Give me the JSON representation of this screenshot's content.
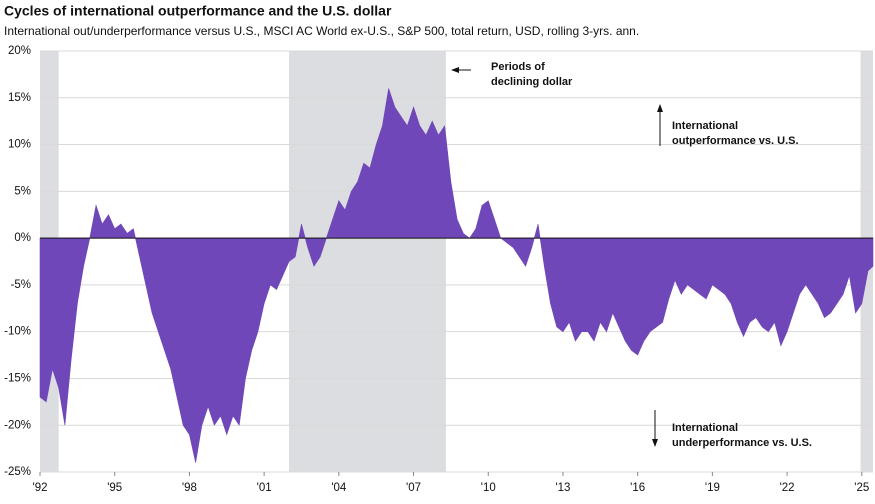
{
  "chart_data": {
    "type": "area",
    "title": "Cycles of international outperformance and the U.S. dollar",
    "subtitle": "International out/underperformance versus U.S., MSCI AC World ex-U.S., S&P 500, total return, USD, rolling 3-yrs. ann.",
    "x": [
      1992,
      1992.25,
      1992.5,
      1992.75,
      1993,
      1993.25,
      1993.5,
      1993.75,
      1994,
      1994.25,
      1994.5,
      1994.75,
      1995,
      1995.25,
      1995.5,
      1995.75,
      1996,
      1996.25,
      1996.5,
      1996.75,
      1997,
      1997.25,
      1997.5,
      1997.75,
      1998,
      1998.25,
      1998.5,
      1998.75,
      1999,
      1999.25,
      1999.5,
      1999.75,
      2000,
      2000.25,
      2000.5,
      2000.75,
      2001,
      2001.25,
      2001.5,
      2001.75,
      2002,
      2002.25,
      2002.5,
      2002.75,
      2003,
      2003.25,
      2003.5,
      2003.75,
      2004,
      2004.25,
      2004.5,
      2004.75,
      2005,
      2005.25,
      2005.5,
      2005.75,
      2006,
      2006.25,
      2006.5,
      2006.75,
      2007,
      2007.25,
      2007.5,
      2007.75,
      2008,
      2008.25,
      2008.5,
      2008.75,
      2009,
      2009.25,
      2009.5,
      2009.75,
      2010,
      2010.25,
      2010.5,
      2010.75,
      2011,
      2011.25,
      2011.5,
      2011.75,
      2012,
      2012.25,
      2012.5,
      2012.75,
      2013,
      2013.25,
      2013.5,
      2013.75,
      2014,
      2014.25,
      2014.5,
      2014.75,
      2015,
      2015.25,
      2015.5,
      2015.75,
      2016,
      2016.25,
      2016.5,
      2016.75,
      2017,
      2017.25,
      2017.5,
      2017.75,
      2018,
      2018.25,
      2018.5,
      2018.75,
      2019,
      2019.25,
      2019.5,
      2019.75,
      2020,
      2020.25,
      2020.5,
      2020.75,
      2021,
      2021.25,
      2021.5,
      2021.75,
      2022,
      2022.25,
      2022.5,
      2022.75,
      2023,
      2023.25,
      2023.5,
      2023.75,
      2024,
      2024.25,
      2024.5,
      2024.75,
      2025,
      2025.25,
      2025.45
    ],
    "series": [
      {
        "color": "#6f47b8",
        "values": [
          -17,
          -17.5,
          -14,
          -16,
          -20,
          -13,
          -7,
          -3,
          0,
          3.5,
          1.5,
          2.5,
          1,
          1.5,
          0.5,
          1,
          -2,
          -5,
          -8,
          -10,
          -12,
          -14,
          -17,
          -20,
          -21,
          -24,
          -20,
          -18,
          -20,
          -19,
          -21,
          -19,
          -20,
          -15,
          -12,
          -10,
          -7,
          -5,
          -5.5,
          -4,
          -2.5,
          -2,
          1.5,
          -1,
          -3,
          -2,
          0,
          2,
          4,
          3,
          5,
          6,
          8,
          7.5,
          10,
          12,
          16,
          14,
          13,
          12,
          14,
          12,
          11,
          12.5,
          11,
          12,
          6,
          2,
          0.5,
          0,
          1,
          3.5,
          4,
          2,
          0,
          -0.5,
          -1,
          -2,
          -3,
          -1,
          1.5,
          -3,
          -7,
          -9.5,
          -10,
          -9,
          -11,
          -10,
          -10,
          -11,
          -9,
          -10,
          -8,
          -9.5,
          -11,
          -12,
          -12.5,
          -11,
          -10,
          -9.5,
          -9,
          -6.5,
          -4.5,
          -6,
          -5,
          -5.5,
          -6,
          -6.5,
          -5,
          -5.5,
          -6,
          -7,
          -9,
          -10.5,
          -9,
          -8.5,
          -9.5,
          -10,
          -9,
          -11.5,
          -10,
          -8,
          -6,
          -5,
          -6,
          -7,
          -8.5,
          -8,
          -7,
          -6,
          -4,
          -8,
          -7,
          -3.5,
          -3
        ]
      }
    ],
    "shaded_periods": [
      [
        1992,
        1992.75
      ],
      [
        2002,
        2008.3
      ],
      [
        2024.95,
        2025.45
      ]
    ],
    "shade_color": "#dcdde0",
    "xlim": [
      1992,
      2025.45
    ],
    "xticks": [
      {
        "value": 1992,
        "label": "'92"
      },
      {
        "value": 1995,
        "label": "'95"
      },
      {
        "value": 1998,
        "label": "'98"
      },
      {
        "value": 2001,
        "label": "'01"
      },
      {
        "value": 2004,
        "label": "'04"
      },
      {
        "value": 2007,
        "label": "'07"
      },
      {
        "value": 2010,
        "label": "'10"
      },
      {
        "value": 2013,
        "label": "'13"
      },
      {
        "value": 2016,
        "label": "'16"
      },
      {
        "value": 2019,
        "label": "'19"
      },
      {
        "value": 2022,
        "label": "'22"
      },
      {
        "value": 2025,
        "label": "'25"
      }
    ],
    "ylim": [
      -25,
      20
    ],
    "yticks": [
      {
        "value": -25,
        "label": "-25%"
      },
      {
        "value": -20,
        "label": "-20%"
      },
      {
        "value": -15,
        "label": "-15%"
      },
      {
        "value": -10,
        "label": "-10%"
      },
      {
        "value": -5,
        "label": "-5%"
      },
      {
        "value": 0,
        "label": "0%"
      },
      {
        "value": 5,
        "label": "5%"
      },
      {
        "value": 10,
        "label": "10%"
      },
      {
        "value": 15,
        "label": "15%"
      },
      {
        "value": 20,
        "label": "20%"
      }
    ],
    "grid": true,
    "annotations": [
      {
        "lines": [
          "Periods of",
          "declining dollar"
        ]
      },
      {
        "lines": [
          "International",
          "outperformance vs. U.S."
        ]
      },
      {
        "lines": [
          "International",
          "underperformance vs. U.S."
        ]
      }
    ]
  }
}
